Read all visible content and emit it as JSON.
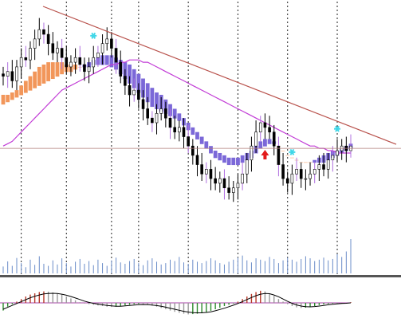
{
  "colors": {
    "background": "#ffffff",
    "candle_body": "#000000",
    "candle_up_body": "#ffffff",
    "candle_wick": "#000000",
    "candle_highlight": "#b070e0",
    "cloud_bull": "#f2965a",
    "cloud_bear": "#7b68d8",
    "slow_ma": "#c23cd6",
    "trendline": "#b8504a",
    "horizontal_line": "#b07d7a",
    "grid": "#202020",
    "fractal_up": "#40d7e8",
    "signal_arrow": "#e21a1a",
    "volume": "#6a8cc8",
    "panel_divider": "#555555",
    "osc_up": "#b83a2a",
    "osc_down": "#999999",
    "osc_green": "#2e8a2e",
    "osc_line": "#000000",
    "osc_zero": "#aa44aa"
  },
  "markers": {
    "fractal_icon": "asterisk-marker-icon",
    "signal_icon": "up-arrow-icon"
  },
  "chart_data": [
    {
      "type": "candlestick",
      "panel": "price",
      "grid": true,
      "axis_labels": false,
      "price_path": [
        70,
        72,
        68,
        74,
        78,
        77,
        82,
        86,
        90,
        88,
        84,
        80,
        82,
        78,
        74,
        76,
        78,
        75,
        72,
        74,
        78,
        80,
        84,
        86,
        82,
        76,
        70,
        66,
        62,
        64,
        60,
        56,
        52,
        50,
        54,
        56,
        52,
        48,
        46,
        48,
        44,
        40,
        36,
        32,
        28,
        30,
        26,
        24,
        26,
        22,
        20,
        22,
        24,
        28,
        34,
        40,
        46,
        50,
        48,
        46,
        40,
        32,
        26,
        24,
        28,
        30,
        26,
        26,
        28,
        30,
        32,
        30,
        34,
        36,
        38,
        40,
        38,
        40
      ],
      "fast_ma": [
        62,
        62,
        63,
        64,
        66,
        68,
        70,
        72,
        74,
        75,
        76,
        76,
        76,
        76,
        75,
        75,
        75,
        74,
        74,
        74,
        75,
        75,
        75,
        75,
        74,
        73,
        71,
        69,
        67,
        65,
        63,
        61,
        59,
        57,
        56,
        55,
        54,
        53,
        52,
        51,
        49,
        47,
        45,
        43,
        41,
        39,
        37,
        35,
        34,
        33,
        32,
        32,
        32,
        33,
        34,
        35,
        37,
        39,
        40,
        41,
        41,
        40,
        38,
        36,
        35,
        34,
        33,
        33,
        33,
        33,
        33,
        33,
        34,
        35,
        36,
        37,
        38,
        39
      ],
      "slow_ma": [
        58,
        59,
        60,
        61,
        62,
        63,
        64,
        65,
        66,
        67,
        68,
        69,
        70,
        71,
        72,
        72,
        73,
        74,
        75,
        76,
        77,
        78,
        79,
        79,
        79,
        78,
        77,
        76,
        75,
        73,
        71,
        69,
        67,
        65,
        63,
        62,
        60,
        58,
        56,
        54,
        52,
        50,
        48,
        46,
        44,
        42,
        40,
        38,
        37,
        36,
        35,
        35,
        35,
        36,
        37,
        38,
        40,
        42,
        43,
        43,
        42,
        40,
        38,
        36,
        35,
        34,
        33,
        33,
        33,
        34,
        35,
        36,
        37,
        38,
        38,
        39,
        40,
        41
      ],
      "long_ma": [
        40,
        41,
        42,
        44,
        46,
        48,
        50,
        52,
        54,
        56,
        58,
        60,
        62,
        64,
        65,
        66,
        67,
        68,
        69,
        70,
        71,
        72,
        73,
        74,
        75,
        75,
        76,
        76,
        77,
        77,
        77,
        76,
        76,
        75,
        74,
        73,
        72,
        71,
        70,
        69,
        68,
        67,
        66,
        65,
        64,
        63,
        62,
        61,
        60,
        59,
        58,
        57,
        56,
        55,
        54,
        53,
        52,
        51,
        50,
        49,
        48,
        47,
        46,
        45,
        44,
        43,
        42,
        41,
        40,
        40,
        39,
        39,
        38,
        38,
        37,
        37,
        37,
        37
      ],
      "trendline": {
        "start": [
          0,
          100
        ],
        "end": [
          77,
          38
        ]
      },
      "horizontal_line": 39,
      "fractal_up_at": [
        20,
        64,
        74
      ],
      "signal_up_at": [
        58
      ],
      "vertical_grid_at": [
        4,
        14,
        24,
        30,
        41,
        52,
        63,
        74
      ]
    },
    {
      "type": "bar",
      "panel": "volume",
      "values": [
        20,
        35,
        22,
        45,
        30,
        18,
        40,
        25,
        50,
        28,
        22,
        38,
        26,
        44,
        30,
        20,
        34,
        42,
        28,
        36,
        24,
        40,
        30,
        22,
        38,
        46,
        32,
        28,
        36,
        42,
        30,
        24,
        38,
        44,
        34,
        26,
        30,
        40,
        36,
        48,
        32,
        28,
        40,
        34,
        30,
        36,
        44,
        38,
        30,
        26,
        34,
        40,
        46,
        52,
        38,
        32,
        44,
        40,
        36,
        48,
        42,
        30,
        38,
        46,
        40,
        34,
        42,
        50,
        44,
        36,
        40,
        46,
        38,
        42,
        56,
        48,
        64,
        100
      ]
    },
    {
      "type": "histogram",
      "panel": "oscillator",
      "values": [
        -0.6,
        -0.3,
        -0.1,
        0.1,
        0.3,
        0.5,
        0.65,
        0.75,
        0.85,
        0.9,
        0.88,
        0.82,
        0.75,
        0.65,
        0.5,
        0.35,
        0.2,
        0.05,
        -0.05,
        -0.1,
        -0.15,
        -0.2,
        -0.25,
        -0.3,
        -0.32,
        -0.3,
        -0.26,
        -0.2,
        -0.15,
        -0.1,
        -0.08,
        -0.1,
        -0.15,
        -0.22,
        -0.3,
        -0.4,
        -0.5,
        -0.6,
        -0.7,
        -0.78,
        -0.85,
        -0.9,
        -0.88,
        -0.85,
        -0.8,
        -0.72,
        -0.62,
        -0.5,
        -0.38,
        -0.25,
        -0.15,
        -0.05,
        0.1,
        0.3,
        0.5,
        0.7,
        0.85,
        0.95,
        0.9,
        0.75,
        0.55,
        0.3,
        0.1,
        -0.1,
        -0.25,
        -0.35,
        -0.4,
        -0.38,
        -0.32,
        -0.25,
        -0.18,
        -0.12,
        -0.08,
        -0.05,
        -0.03,
        -0.02,
        0.0,
        0.05
      ],
      "signal_line": [
        -0.5,
        -0.35,
        -0.2,
        -0.05,
        0.1,
        0.25,
        0.4,
        0.52,
        0.62,
        0.7,
        0.74,
        0.75,
        0.73,
        0.68,
        0.6,
        0.5,
        0.38,
        0.26,
        0.14,
        0.04,
        -0.04,
        -0.1,
        -0.15,
        -0.2,
        -0.24,
        -0.26,
        -0.26,
        -0.24,
        -0.2,
        -0.17,
        -0.14,
        -0.13,
        -0.14,
        -0.17,
        -0.21,
        -0.27,
        -0.34,
        -0.42,
        -0.5,
        -0.58,
        -0.66,
        -0.72,
        -0.76,
        -0.78,
        -0.78,
        -0.75,
        -0.7,
        -0.62,
        -0.52,
        -0.42,
        -0.3,
        -0.18,
        -0.05,
        0.1,
        0.26,
        0.42,
        0.56,
        0.68,
        0.74,
        0.72,
        0.62,
        0.48,
        0.3,
        0.12,
        -0.04,
        -0.16,
        -0.25,
        -0.3,
        -0.31,
        -0.29,
        -0.25,
        -0.2,
        -0.15,
        -0.11,
        -0.08,
        -0.05,
        -0.03,
        0.0
      ],
      "zero_line": 0
    }
  ]
}
